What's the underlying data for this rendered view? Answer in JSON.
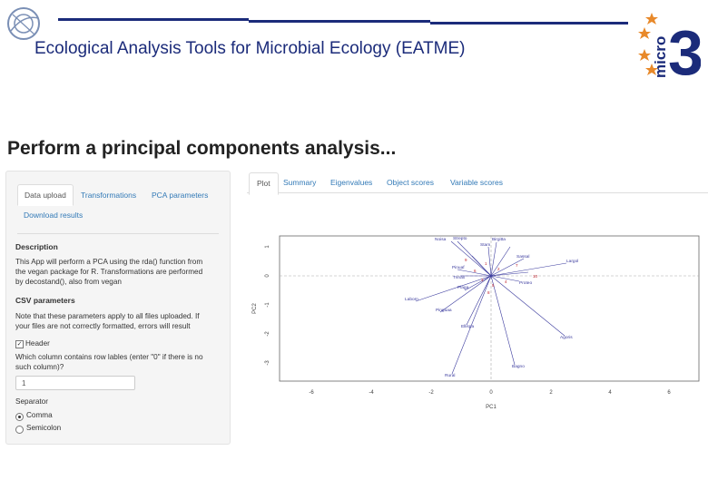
{
  "header": {
    "title": "Ecological Analysis Tools for Microbial Ecology (EATME)",
    "logo_right_text": "micro",
    "logo_right_number": "3",
    "colors": {
      "brand_blue": "#1b2b7a",
      "star_orange": "#e8892a"
    }
  },
  "page_heading": "Perform a principal components analysis...",
  "sidebar": {
    "tabs": [
      "Data upload",
      "Transformations",
      "PCA parameters",
      "Download results"
    ],
    "description_heading": "Description",
    "description_lines": [
      "This App will perform a PCA using the rda() function from",
      "the vegan package for R. Transformations are performed",
      "by decostand(), also from vegan"
    ],
    "csv_heading": "CSV parameters",
    "csv_note_lines": [
      "Note that these parameters apply to all files uploaded. If",
      "your files are not correctly formatted, errors will result"
    ],
    "header_checkbox_label": "Header",
    "header_checked": true,
    "rownames_label_lines": [
      "Which column contains row lables (enter \"0\" if there is no",
      "such column)?"
    ],
    "rownames_value": "1",
    "separator_label": "Separator",
    "separator_options": [
      {
        "label": "Comma",
        "selected": true
      },
      {
        "label": "Semicolon",
        "selected": false
      }
    ]
  },
  "main_tabs": [
    "Plot",
    "Summary",
    "Eigenvalues",
    "Object scores",
    "Variable scores"
  ],
  "plot": {
    "xlabel": "PC1",
    "ylabel": "PC2",
    "xticks": [
      "-6",
      "-4",
      "-2",
      "0",
      "2",
      "4",
      "6"
    ],
    "yticks": [
      "1",
      "0",
      "-1",
      "-2",
      "-3"
    ],
    "variable_labels": [
      "Noisa",
      "Strepto",
      "Birgitta",
      "Stam",
      "Largol",
      "Laborn",
      "Pinguaa",
      "Agoris",
      "Bagno",
      "Ellispa",
      "Trinax",
      "Pinuaf",
      "Rural",
      "Plaga",
      "Proteo",
      "Sassal"
    ],
    "colors": {
      "arrow": "#3b3b9e",
      "sample": "#c0202a",
      "axis": "#666666"
    }
  }
}
